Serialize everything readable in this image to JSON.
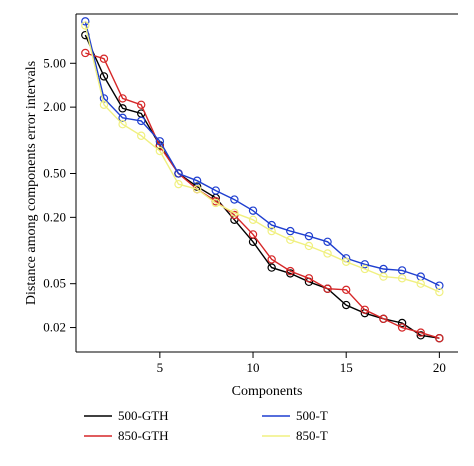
{
  "chart_data": {
    "type": "line",
    "xlabel": "Components",
    "ylabel": "Distance among components error intervals",
    "xlim": [
      0.5,
      21
    ],
    "ylim": [
      0.012,
      14
    ],
    "yscale": "log",
    "grid": false,
    "legend_position": "bottom",
    "x_ticks": [
      5,
      10,
      15,
      20
    ],
    "x_tick_labels": [
      "5",
      "10",
      "15",
      "20"
    ],
    "y_ticks": [
      0.02,
      0.05,
      0.2,
      0.5,
      2.0,
      5.0
    ],
    "y_tick_labels": [
      "0.02",
      "0.05",
      "0.20",
      "0.50",
      "2.00",
      "5.00"
    ],
    "x": [
      1,
      2,
      3,
      4,
      5,
      6,
      7,
      8,
      9,
      10,
      11,
      12,
      13,
      14,
      15,
      16,
      17,
      18,
      19,
      20
    ],
    "series": [
      {
        "name": "500-GTH",
        "color": "#000000",
        "values": [
          9.0,
          3.8,
          1.95,
          1.75,
          0.9,
          0.5,
          0.38,
          0.3,
          0.19,
          0.12,
          0.07,
          0.062,
          0.052,
          0.045,
          0.032,
          0.027,
          0.024,
          0.022,
          0.017,
          0.016
        ]
      },
      {
        "name": "850-GTH",
        "color": "#d62728",
        "values": [
          6.2,
          5.5,
          2.4,
          2.1,
          0.88,
          0.5,
          0.36,
          0.28,
          0.21,
          0.14,
          0.083,
          0.065,
          0.056,
          0.045,
          0.044,
          0.029,
          0.024,
          0.02,
          0.018,
          0.016
        ]
      },
      {
        "name": "500-T",
        "color": "#1f3fd0",
        "values": [
          12.0,
          2.4,
          1.6,
          1.5,
          0.98,
          0.5,
          0.43,
          0.35,
          0.29,
          0.23,
          0.17,
          0.15,
          0.135,
          0.12,
          0.085,
          0.075,
          0.068,
          0.066,
          0.058,
          0.048
        ]
      },
      {
        "name": "850-T",
        "color": "#f0f080",
        "values": [
          11.0,
          2.1,
          1.4,
          1.1,
          0.8,
          0.4,
          0.36,
          0.27,
          0.22,
          0.19,
          0.15,
          0.125,
          0.11,
          0.094,
          0.079,
          0.068,
          0.058,
          0.056,
          0.05,
          0.042
        ]
      }
    ]
  }
}
